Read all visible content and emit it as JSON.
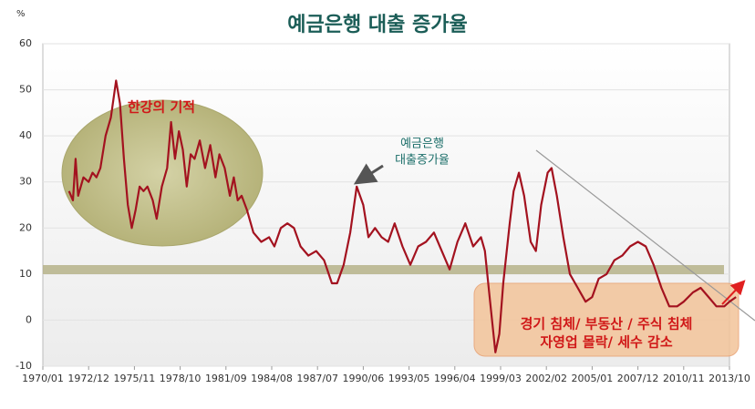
{
  "chart_data": {
    "type": "line",
    "title": "예금은행 대출 증가율",
    "ylabel": "%",
    "x": [
      "1971/09",
      "1971/12",
      "1972/02",
      "1972/04",
      "1972/08",
      "1972/12",
      "1973/03",
      "1973/06",
      "1973/09",
      "1974/01",
      "1974/05",
      "1974/09",
      "1974/12",
      "1975/03",
      "1975/06",
      "1975/09",
      "1975/12",
      "1976/03",
      "1976/06",
      "1976/09",
      "1977/01",
      "1977/04",
      "1977/08",
      "1977/12",
      "1978/03",
      "1978/06",
      "1978/09",
      "1978/12",
      "1979/03",
      "1979/06",
      "1979/09",
      "1980/01",
      "1980/05",
      "1980/09",
      "1981/01",
      "1981/04",
      "1981/08",
      "1981/12",
      "1982/03",
      "1982/06",
      "1982/09",
      "1983/01",
      "1983/06",
      "1983/12",
      "1984/06",
      "1984/10",
      "1985/03",
      "1985/08",
      "1986/01",
      "1986/06",
      "1986/12",
      "1987/06",
      "1987/12",
      "1988/06",
      "1988/10",
      "1989/03",
      "1989/08",
      "1990/01",
      "1990/06",
      "1990/10",
      "1991/03",
      "1991/08",
      "1992/01",
      "1992/06",
      "1992/12",
      "1993/06",
      "1993/12",
      "1994/06",
      "1994/12",
      "1995/06",
      "1995/12",
      "1996/06",
      "1996/12",
      "1997/06",
      "1997/12",
      "1998/03",
      "1998/07",
      "1998/11",
      "1999/02",
      "1999/05",
      "1999/10",
      "2000/01",
      "2000/05",
      "2000/09",
      "2001/02",
      "2001/06",
      "2001/10",
      "2002/03",
      "2002/06",
      "2002/10",
      "2003/03",
      "2003/08",
      "2004/02",
      "2004/08",
      "2005/01",
      "2005/06",
      "2005/12",
      "2006/06",
      "2006/12",
      "2007/06",
      "2007/12",
      "2008/06",
      "2008/12",
      "2009/06",
      "2009/12",
      "2010/06",
      "2010/11",
      "2011/06",
      "2011/12",
      "2012/06",
      "2012/12",
      "2013/06",
      "2013/10",
      "2014/03"
    ],
    "values": [
      28,
      26,
      35,
      27,
      31,
      30,
      32,
      31,
      33,
      40,
      44,
      52,
      47,
      35,
      25,
      20,
      24,
      29,
      28,
      29,
      26,
      22,
      29,
      33,
      43,
      35,
      41,
      37,
      29,
      36,
      35,
      39,
      33,
      38,
      31,
      36,
      33,
      27,
      31,
      26,
      27,
      24,
      19,
      17,
      18,
      16,
      20,
      21,
      20,
      16,
      14,
      15,
      13,
      8,
      8,
      12,
      19,
      29,
      25,
      18,
      20,
      18,
      17,
      21,
      16,
      12,
      16,
      17,
      19,
      15,
      11,
      17,
      21,
      16,
      18,
      15,
      4,
      -7,
      -3,
      8,
      21,
      28,
      32,
      27,
      17,
      15,
      25,
      32,
      33,
      27,
      18,
      10,
      7,
      4,
      5,
      9,
      10,
      13,
      14,
      16,
      17,
      16,
      12,
      7,
      3,
      3,
      4,
      6,
      7,
      5,
      3,
      3,
      4,
      5
    ],
    "color": "#a3121f",
    "xticks": [
      "1970/01",
      "1972/12",
      "1975/11",
      "1978/10",
      "1981/09",
      "1984/08",
      "1987/07",
      "1990/06",
      "1993/05",
      "1996/04",
      "1999/03",
      "2002/02",
      "2005/01",
      "2007/12",
      "2010/11",
      "2013/10"
    ],
    "ylim": [
      -10,
      60
    ],
    "yticks": [
      -10,
      0,
      10,
      20,
      30,
      40,
      50,
      60
    ],
    "grid": true,
    "annotations": {
      "miracle": "한강의 기적",
      "label": [
        "예금은행",
        "대출증가율"
      ],
      "recession": [
        "경기 침체/ 부동산 / 주식 침체",
        "자영업 몰락/ 세수 감소"
      ]
    }
  }
}
